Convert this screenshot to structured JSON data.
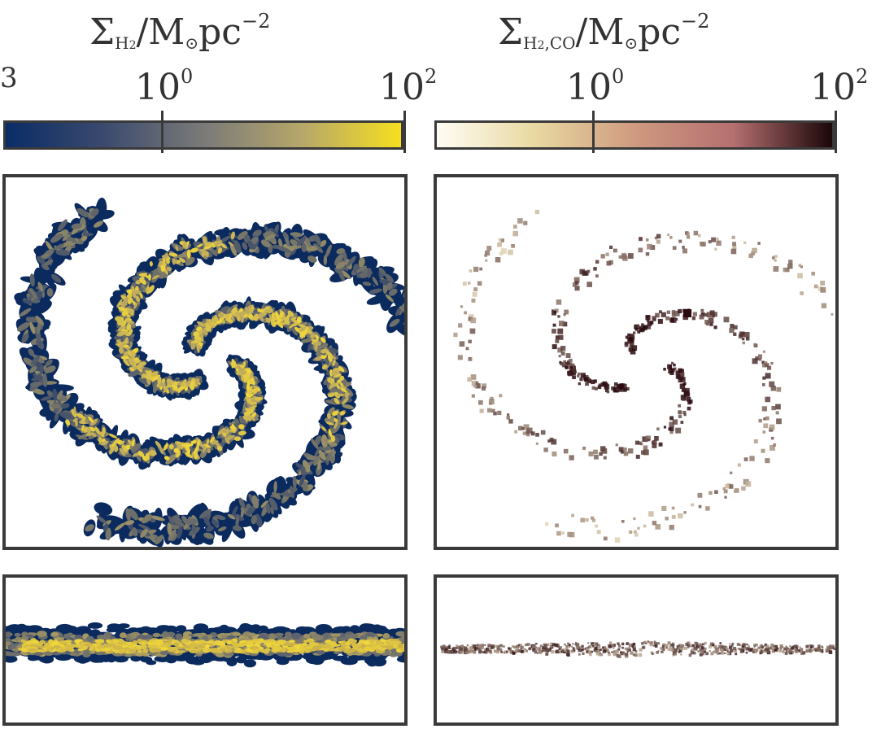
{
  "left": {
    "label_main": "Σ",
    "label_sub": "H",
    "label_sub2": "2",
    "label_rest": "/M",
    "label_sun": "⊙",
    "label_unit": "pc",
    "label_exp": "−2",
    "tick_low_base": "10",
    "tick_low_exp": "0",
    "tick_high_base": "10",
    "tick_high_exp": "2",
    "gradient": [
      "#0a2c66",
      "#3b4a6e",
      "#7a7a78",
      "#b6a76a",
      "#f6df1f"
    ]
  },
  "right": {
    "label_main": "Σ",
    "label_sub": "H",
    "label_sub2": "2",
    "label_sub3": ",CO",
    "label_rest": "/M",
    "label_sun": "⊙",
    "label_unit": "pc",
    "label_exp": "−2",
    "tick_low_base": "10",
    "tick_low_exp": "0",
    "tick_high_base": "10",
    "tick_high_exp": "2",
    "gradient": [
      "#fffdf5",
      "#e8d8a0",
      "#cf9a80",
      "#b56f70",
      "#1a0608"
    ]
  },
  "edge_mark": "3",
  "colors": {
    "frame": "#3a3a3a",
    "h2_low": "#0b2a5e",
    "h2_high": "#f2d83a",
    "co_low": "#f3e6c4",
    "co_high": "#2a0a10"
  }
}
